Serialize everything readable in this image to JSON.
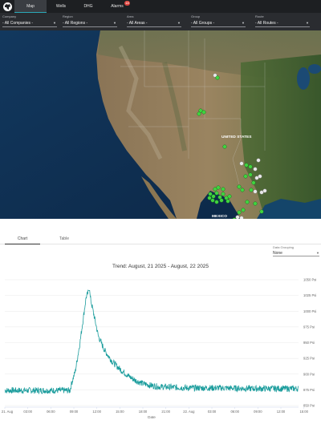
{
  "nav": {
    "tabs": [
      {
        "label": "Map",
        "active": true
      },
      {
        "label": "Wells"
      },
      {
        "label": "DHG"
      },
      {
        "label": "Alarms",
        "badge": "18"
      }
    ]
  },
  "filters": [
    {
      "label": "Company",
      "value": "- All Companies -"
    },
    {
      "label": "Region",
      "value": "- All Regions -"
    },
    {
      "label": "Area",
      "value": "- All Areas -"
    },
    {
      "label": "Group",
      "value": "- All Groups -"
    },
    {
      "label": "Route",
      "value": "- All Routes -"
    }
  ],
  "map": {
    "labels": [
      "UNITED STATES",
      "MEXICO"
    ]
  },
  "panel": {
    "tabs": [
      {
        "label": "Chart",
        "active": true
      },
      {
        "label": "Table"
      }
    ],
    "grouping": {
      "label": "Data Grouping",
      "value": "None"
    }
  },
  "chart_data": {
    "type": "line",
    "title": "Trend: August, 21 2025 - August, 22 2025",
    "xlabel": "Date",
    "x_ticks": [
      "21. Aug",
      "03:00",
      "06:00",
      "09:00",
      "12:00",
      "15:00",
      "18:00",
      "21:00",
      "22. Aug",
      "03:00",
      "06:00",
      "09:00",
      "12:00",
      "15:00"
    ],
    "y_ticks": [
      "850 Psi",
      "875 Psi",
      "900 Psi",
      "925 Psi",
      "950 Psi",
      "975 Psi",
      "1000 Psi",
      "1025 Psi",
      "1050 Psi"
    ],
    "ylim": [
      850,
      1050
    ],
    "color": "#1a9c9c",
    "series": [
      {
        "keypoints": [
          [
            0,
            874
          ],
          [
            8.5,
            874
          ],
          [
            8.7,
            885
          ],
          [
            9.2,
            905
          ],
          [
            9.8,
            950
          ],
          [
            10.6,
            1022
          ],
          [
            11.0,
            1033
          ],
          [
            11.2,
            1018
          ],
          [
            11.6,
            995
          ],
          [
            12.2,
            960
          ],
          [
            13,
            938
          ],
          [
            14,
            920
          ],
          [
            15,
            908
          ],
          [
            16,
            898
          ],
          [
            17,
            890
          ],
          [
            18,
            885
          ],
          [
            19,
            882
          ],
          [
            20,
            880
          ],
          [
            22,
            879
          ],
          [
            24,
            878
          ],
          [
            28,
            878
          ],
          [
            32,
            877
          ],
          [
            38.3,
            877
          ]
        ],
        "noise": 5
      }
    ]
  }
}
